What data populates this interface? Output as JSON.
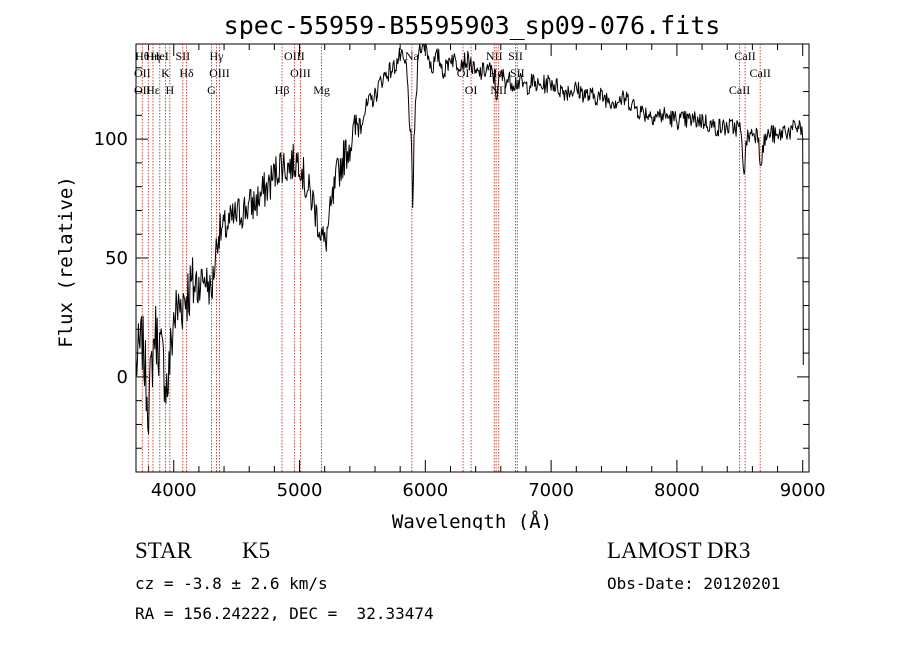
{
  "chart_data": {
    "type": "line",
    "title": "spec-55959-B5595903_sp09-076.fits",
    "xlabel": "Wavelength (Å)",
    "ylabel": "Flux (relative)",
    "xlim": [
      3700,
      9050
    ],
    "ylim": [
      -40,
      140
    ],
    "xticks": [
      4000,
      5000,
      6000,
      7000,
      8000,
      9000
    ],
    "yticks": [
      0,
      50,
      100
    ],
    "grid": false,
    "series": [
      {
        "name": "flux",
        "x": [
          3700,
          3750,
          3800,
          3850,
          3900,
          3950,
          4000,
          4050,
          4100,
          4150,
          4200,
          4250,
          4300,
          4350,
          4400,
          4450,
          4500,
          4550,
          4600,
          4650,
          4700,
          4750,
          4800,
          4850,
          4900,
          4950,
          5000,
          5050,
          5100,
          5150,
          5200,
          5250,
          5300,
          5350,
          5400,
          5450,
          5500,
          5550,
          5600,
          5650,
          5700,
          5750,
          5800,
          5850,
          5890,
          5900,
          5910,
          5950,
          6000,
          6050,
          6100,
          6150,
          6200,
          6250,
          6300,
          6350,
          6400,
          6450,
          6500,
          6550,
          6563,
          6600,
          6650,
          6700,
          6750,
          6800,
          6850,
          6900,
          6950,
          7000,
          7100,
          7200,
          7300,
          7400,
          7500,
          7600,
          7700,
          7800,
          7900,
          8000,
          8100,
          8200,
          8300,
          8400,
          8500,
          8540,
          8550,
          8600,
          8650,
          8662,
          8700,
          8750,
          8800,
          8850,
          8900,
          8950,
          8980,
          9000,
          9005
        ],
        "values": [
          5,
          15,
          -12,
          20,
          10,
          -5,
          25,
          30,
          35,
          38,
          40,
          42,
          35,
          60,
          62,
          65,
          68,
          70,
          72,
          73,
          77,
          80,
          85,
          90,
          88,
          90,
          92,
          80,
          75,
          65,
          55,
          70,
          85,
          92,
          98,
          105,
          110,
          115,
          118,
          125,
          128,
          130,
          135,
          130,
          95,
          70,
          100,
          140,
          140,
          130,
          135,
          128,
          135,
          132,
          133,
          133,
          127,
          128,
          130,
          126,
          118,
          127,
          125,
          124,
          124,
          122,
          124,
          122,
          123,
          124,
          120,
          121,
          118,
          118,
          116,
          117,
          112,
          110,
          110,
          108,
          108,
          108,
          105,
          105,
          105,
          85,
          100,
          103,
          102,
          90,
          100,
          103,
          100,
          104,
          103,
          105,
          106,
          100,
          5
        ]
      }
    ],
    "lines": [
      {
        "x": 3750,
        "labels": [
          "Hθ",
          "OII",
          "OII"
        ]
      },
      {
        "x": 3798,
        "labels": []
      },
      {
        "x": 3835,
        "labels": [
          "Hε",
          "Hη"
        ]
      },
      {
        "x": 3889,
        "labels": [
          "HeI"
        ]
      },
      {
        "x": 3934,
        "labels": [
          "K"
        ]
      },
      {
        "x": 3969,
        "labels": [
          "H"
        ]
      },
      {
        "x": 4072,
        "labels": [
          "SII"
        ]
      },
      {
        "x": 4102,
        "labels": [
          "Hδ"
        ]
      },
      {
        "x": 4300,
        "labels": [
          "G"
        ]
      },
      {
        "x": 4340,
        "labels": [
          "Hγ"
        ]
      },
      {
        "x": 4363,
        "labels": [
          "OIII"
        ]
      },
      {
        "x": 4861,
        "labels": [
          "Hβ"
        ]
      },
      {
        "x": 4959,
        "labels": [
          "OIII"
        ]
      },
      {
        "x": 5007,
        "labels": [
          "OIII"
        ]
      },
      {
        "x": 5175,
        "labels": [
          "Mg"
        ]
      },
      {
        "x": 5893,
        "labels": [
          "Na"
        ]
      },
      {
        "x": 6300,
        "labels": [
          "OI"
        ]
      },
      {
        "x": 6364,
        "labels": [
          "OI"
        ]
      },
      {
        "x": 6548,
        "labels": [
          "NII"
        ]
      },
      {
        "x": 6563,
        "labels": [
          "Hα"
        ]
      },
      {
        "x": 6583,
        "labels": [
          "NII"
        ]
      },
      {
        "x": 6717,
        "labels": [
          "SII"
        ]
      },
      {
        "x": 6731,
        "labels": [
          "SII"
        ]
      },
      {
        "x": 8498,
        "labels": [
          "CaII"
        ]
      },
      {
        "x": 8542,
        "labels": [
          "CaII"
        ]
      },
      {
        "x": 8662,
        "labels": [
          "CaII"
        ]
      }
    ]
  },
  "info": {
    "class": "STAR",
    "subclass": "K5",
    "survey": "LAMOST DR3",
    "cz": "cz = -3.8 ± 2.6 km/s",
    "obs_date": "Obs-Date: 20120201",
    "coords": "RA = 156.24222, DEC =  32.33474"
  }
}
